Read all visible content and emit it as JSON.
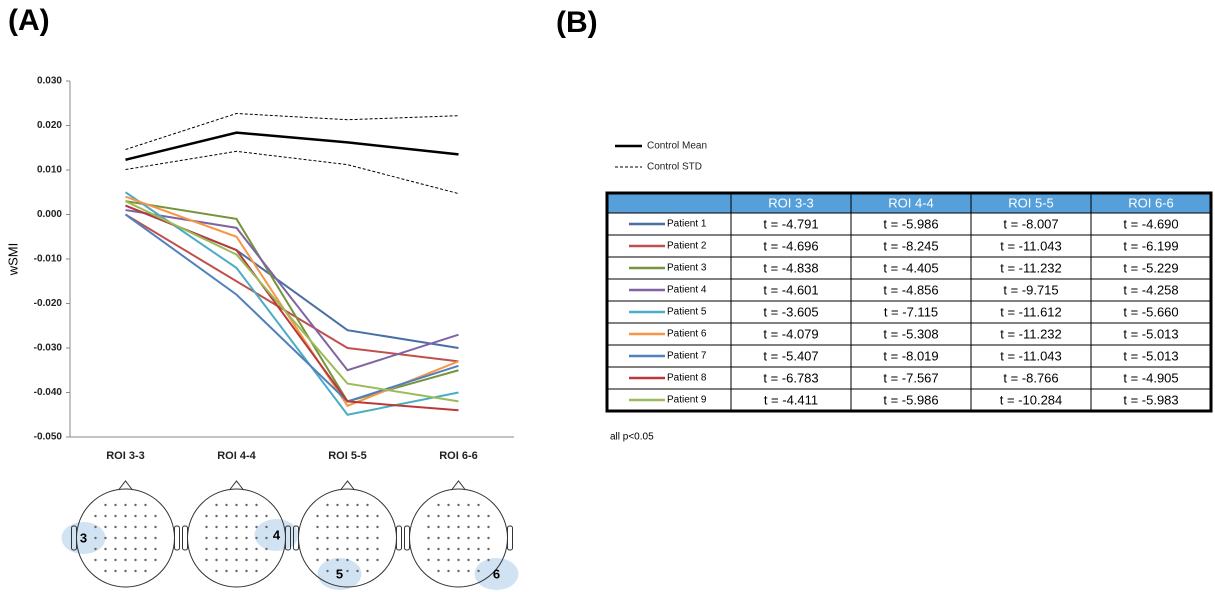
{
  "panels": [
    "(A)",
    "(B)"
  ],
  "chart_data": {
    "type": "line",
    "y_label": "wSMI",
    "categories": [
      "ROI 3-3",
      "ROI 4-4",
      "ROI 5-5",
      "ROI 6-6"
    ],
    "ylim": [
      -0.05,
      0.03
    ],
    "yticks": [
      {
        "value": -0.05,
        "label": "-0.050"
      },
      {
        "value": -0.04,
        "label": "-0.040"
      },
      {
        "value": -0.03,
        "label": "-0.030"
      },
      {
        "value": -0.02,
        "label": "-0.020"
      },
      {
        "value": -0.01,
        "label": "-0.010"
      },
      {
        "value": 0,
        "label": "0.000"
      },
      {
        "value": 0.01,
        "label": "0.010"
      },
      {
        "value": 0.02,
        "label": "0.020"
      },
      {
        "value": 0.03,
        "label": "0.030"
      }
    ],
    "series": [
      {
        "name": "Control Mean",
        "color": "#000000",
        "style": "solid",
        "values": [
          0.0123,
          0.0184,
          0.0162,
          0.0135
        ]
      },
      {
        "name": "Control STD",
        "color": "#000000",
        "style": "dashed",
        "upper": [
          0.0146,
          0.0227,
          0.0213,
          0.0222
        ],
        "lower": [
          0.0101,
          0.0142,
          0.0112,
          0.0047
        ]
      },
      {
        "name": "Patient 1",
        "color": "#4a6fa5",
        "values": [
          0.002,
          -0.008,
          -0.026,
          -0.03
        ]
      },
      {
        "name": "Patient 2",
        "color": "#c0504d",
        "values": [
          0.0,
          -0.015,
          -0.03,
          -0.033
        ]
      },
      {
        "name": "Patient 3",
        "color": "#77933c",
        "values": [
          0.003,
          -0.001,
          -0.042,
          -0.035
        ]
      },
      {
        "name": "Patient 4",
        "color": "#8064a2",
        "values": [
          0.001,
          -0.003,
          -0.035,
          -0.027
        ]
      },
      {
        "name": "Patient 5",
        "color": "#4bacc6",
        "values": [
          0.005,
          -0.012,
          -0.045,
          -0.04
        ]
      },
      {
        "name": "Patient 6",
        "color": "#f79646",
        "values": [
          0.004,
          -0.005,
          -0.043,
          -0.033
        ]
      },
      {
        "name": "Patient 7",
        "color": "#4f81bd",
        "values": [
          0.0,
          -0.018,
          -0.042,
          -0.034
        ]
      },
      {
        "name": "Patient 8",
        "color": "#b83b3b",
        "values": [
          0.002,
          -0.008,
          -0.042,
          -0.044
        ]
      },
      {
        "name": "Patient 9",
        "color": "#9bbb59",
        "values": [
          0.003,
          -0.009,
          -0.038,
          -0.042
        ]
      }
    ]
  },
  "table": {
    "rows": [
      [
        "t = -4.791",
        "t = -5.986",
        "t = -8.007",
        "t = -4.690"
      ],
      [
        "t = -4.696",
        "t = -8.245",
        "t = -11.043",
        "t = -6.199"
      ],
      [
        "t = -4.838",
        "t = -4.405",
        "t = -11.232",
        "t = -5.229"
      ],
      [
        "t = -4.601",
        "t = -4.856",
        "t = -9.715",
        "t = -4.258"
      ],
      [
        "t = -3.605",
        "t = -7.115",
        "t = -11.612",
        "t = -5.660"
      ],
      [
        "t = -4.079",
        "t = -5.308",
        "t = -11.232",
        "t = -5.013"
      ],
      [
        "t = -5.407",
        "t = -8.019",
        "t = -11.043",
        "t = -5.013"
      ],
      [
        "t = -6.783",
        "t = -7.567",
        "t = -8.766",
        "t = -4.905"
      ],
      [
        "t = -4.411",
        "t = -5.986",
        "t = -10.284",
        "t = -5.983"
      ]
    ]
  },
  "footnote": "all p<0.05",
  "head_labels": [
    "3",
    "4",
    "5",
    "6"
  ]
}
